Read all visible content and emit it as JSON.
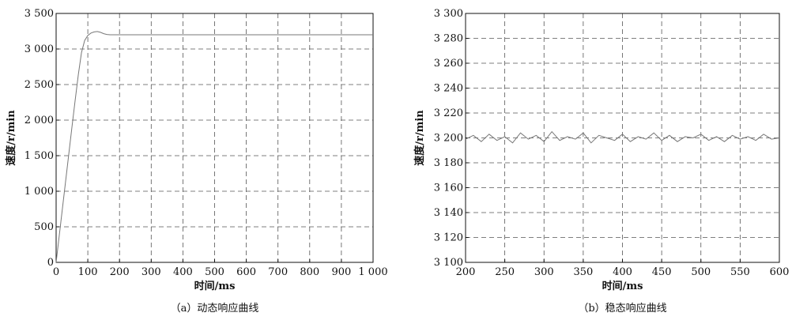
{
  "chart_data": [
    {
      "type": "line",
      "caption": "（a）动态响应曲线",
      "xlabel": "时间/ms",
      "ylabel": "速度/r/min",
      "xlim": [
        0,
        1000
      ],
      "ylim": [
        0,
        3500
      ],
      "xticks": [
        0,
        100,
        200,
        300,
        400,
        500,
        600,
        700,
        800,
        900,
        1000
      ],
      "yticks": [
        0,
        500,
        1000,
        1500,
        2000,
        2500,
        3000,
        3500
      ],
      "xtick_labels": [
        "0",
        "100",
        "200",
        "300",
        "400",
        "500",
        "600",
        "700",
        "800",
        "900",
        "1 000"
      ],
      "ytick_labels": [
        "0",
        "500",
        "1 000",
        "1 500",
        "2 000",
        "2 500",
        "3 000",
        "3 500"
      ],
      "grid": true,
      "series": [
        {
          "x": [
            0,
            10,
            20,
            30,
            40,
            50,
            60,
            70,
            80,
            90,
            100,
            110,
            120,
            130,
            140,
            150,
            160,
            170,
            180,
            200,
            250,
            300,
            400,
            500,
            600,
            700,
            800,
            900,
            1000
          ],
          "y": [
            0,
            380,
            760,
            1140,
            1520,
            1900,
            2280,
            2640,
            2950,
            3120,
            3190,
            3225,
            3240,
            3245,
            3235,
            3215,
            3205,
            3200,
            3200,
            3200,
            3200,
            3200,
            3200,
            3200,
            3200,
            3200,
            3200,
            3200,
            3200
          ]
        }
      ]
    },
    {
      "type": "line",
      "caption": "（b）稳态响应曲线",
      "xlabel": "时间/ms",
      "ylabel": "速度/r/min",
      "xlim": [
        200,
        600
      ],
      "ylim": [
        3100,
        3300
      ],
      "xticks": [
        200,
        250,
        300,
        350,
        400,
        450,
        500,
        550,
        600
      ],
      "yticks": [
        3100,
        3120,
        3140,
        3160,
        3180,
        3200,
        3220,
        3240,
        3260,
        3280,
        3300
      ],
      "xtick_labels": [
        "200",
        "250",
        "300",
        "350",
        "400",
        "450",
        "500",
        "550",
        "600"
      ],
      "ytick_labels": [
        "3 100",
        "3 120",
        "3 140",
        "3 160",
        "3 180",
        "3 200",
        "3 220",
        "3 240",
        "3 260",
        "3 280",
        "3 300"
      ],
      "grid": true,
      "series": [
        {
          "x": [
            200,
            210,
            220,
            230,
            240,
            250,
            260,
            270,
            280,
            290,
            300,
            310,
            320,
            330,
            340,
            350,
            360,
            370,
            380,
            390,
            400,
            410,
            420,
            430,
            440,
            450,
            460,
            470,
            480,
            490,
            500,
            510,
            520,
            530,
            540,
            550,
            560,
            570,
            580,
            590,
            600
          ],
          "y": [
            3199,
            3202,
            3197,
            3203,
            3198,
            3201,
            3196,
            3204,
            3199,
            3202,
            3197,
            3205,
            3198,
            3201,
            3199,
            3204,
            3196,
            3202,
            3200,
            3198,
            3203,
            3197,
            3201,
            3199,
            3204,
            3198,
            3202,
            3197,
            3201,
            3200,
            3203,
            3198,
            3201,
            3197,
            3202,
            3199,
            3201,
            3198,
            3203,
            3199,
            3200
          ]
        }
      ]
    }
  ]
}
